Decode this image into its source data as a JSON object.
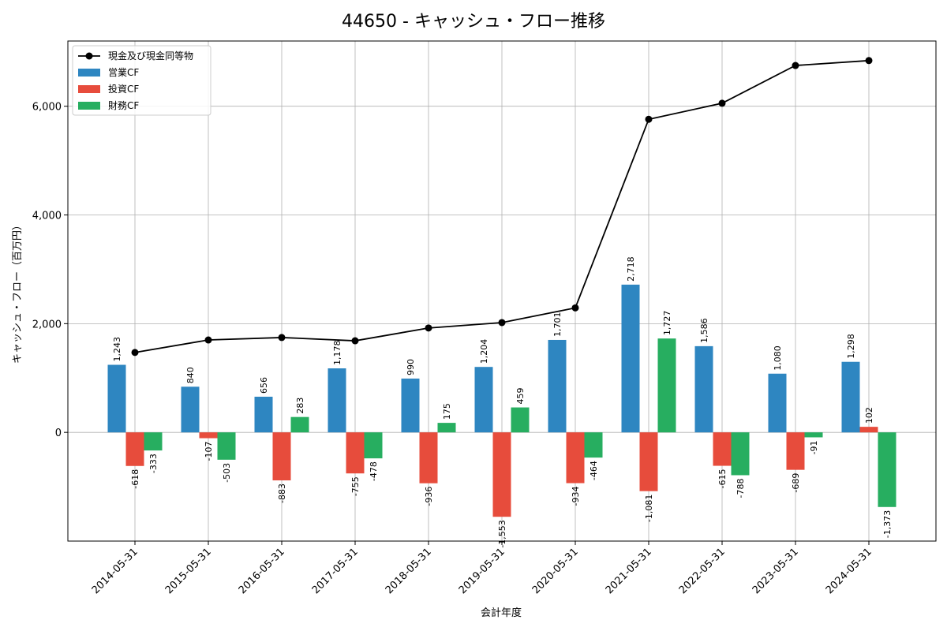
{
  "chart_data": {
    "type": "bar",
    "title": "44650 - キャッシュ・フロー推移",
    "xlabel": "会計年度",
    "ylabel": "キャッシュ・フロー（百万円）",
    "categories": [
      "2014-05-31",
      "2015-05-31",
      "2016-05-31",
      "2017-05-31",
      "2018-05-31",
      "2019-05-31",
      "2020-05-31",
      "2021-05-31",
      "2022-05-31",
      "2023-05-31",
      "2024-05-31"
    ],
    "series": [
      {
        "name": "営業CF",
        "type": "bar",
        "color": "#2e86c1",
        "values": [
          1243,
          840,
          656,
          1178,
          990,
          1204,
          1701,
          2718,
          1586,
          1080,
          1298
        ]
      },
      {
        "name": "投資CF",
        "type": "bar",
        "color": "#e74c3c",
        "values": [
          -618,
          -107,
          -883,
          -755,
          -936,
          -1553,
          -934,
          -1081,
          -615,
          -689,
          102
        ]
      },
      {
        "name": "財務CF",
        "type": "bar",
        "color": "#27ae60",
        "values": [
          -333,
          -503,
          283,
          -478,
          175,
          459,
          -464,
          1727,
          -788,
          -91,
          -1373
        ]
      },
      {
        "name": "現金及び現金同等物",
        "type": "line",
        "color": "#000000",
        "values": [
          1470,
          1700,
          1745,
          1685,
          1920,
          2020,
          2290,
          5760,
          6055,
          6750,
          6840
        ]
      }
    ],
    "yticks": [
      0,
      2000,
      4000,
      6000
    ],
    "ytick_labels": [
      "0",
      "2,000",
      "4,000",
      "6,000"
    ],
    "ylim": [
      -2000,
      7200
    ],
    "grid": true,
    "legend": "top-left"
  }
}
